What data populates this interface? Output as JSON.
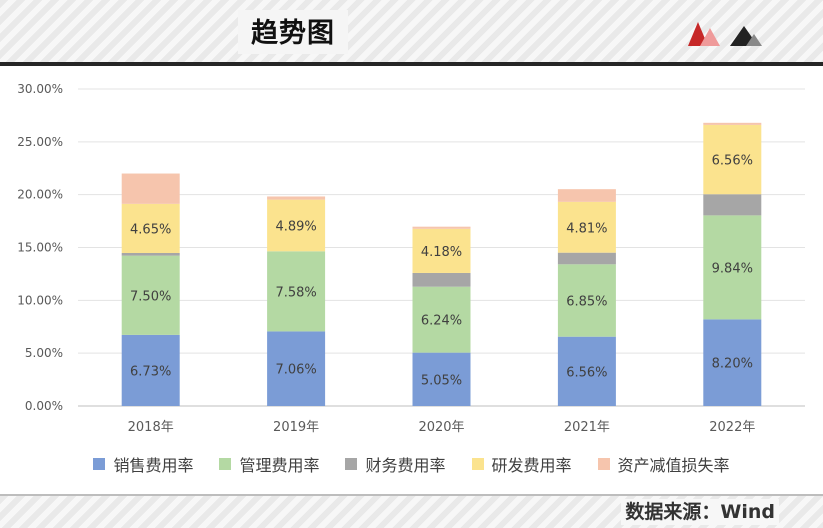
{
  "header": {
    "title": "趋势图"
  },
  "footer": {
    "source": "数据来源：Wind"
  },
  "chart_data": {
    "type": "bar",
    "stacked": true,
    "categories": [
      "2018年",
      "2019年",
      "2020年",
      "2021年",
      "2022年"
    ],
    "ylim": [
      0,
      30
    ],
    "yticks": [
      "0.00%",
      "5.00%",
      "10.00%",
      "15.00%",
      "20.00%",
      "25.00%",
      "30.00%"
    ],
    "ytick_values": [
      0,
      5,
      10,
      15,
      20,
      25,
      30
    ],
    "grid": true,
    "legend_position": "bottom",
    "series": [
      {
        "name": "销售费用率",
        "color": "#7b9cd6",
        "values": [
          6.73,
          7.06,
          5.05,
          6.56,
          8.2
        ],
        "labels": [
          "6.73%",
          "7.06%",
          "5.05%",
          "6.56%",
          "8.20%"
        ]
      },
      {
        "name": "管理费用率",
        "color": "#b4d9a3",
        "values": [
          7.5,
          7.58,
          6.24,
          6.85,
          9.84
        ],
        "labels": [
          "7.50%",
          "7.58%",
          "6.24%",
          "6.85%",
          "9.84%"
        ]
      },
      {
        "name": "财务费用率",
        "color": "#a6a6a6",
        "values": [
          0.25,
          0.0,
          1.3,
          1.1,
          2.0
        ],
        "labels": [
          "",
          "",
          "",
          "",
          ""
        ]
      },
      {
        "name": "研发费用率",
        "color": "#fbe38e",
        "values": [
          4.65,
          4.89,
          4.18,
          4.81,
          6.56
        ],
        "labels": [
          "4.65%",
          "4.89%",
          "4.18%",
          "4.81%",
          "6.56%"
        ]
      },
      {
        "name": "资产减值损失率",
        "color": "#f6c5ad",
        "values": [
          2.87,
          0.3,
          0.2,
          1.2,
          0.2
        ],
        "labels": [
          "",
          "",
          "",
          "",
          ""
        ]
      }
    ]
  }
}
